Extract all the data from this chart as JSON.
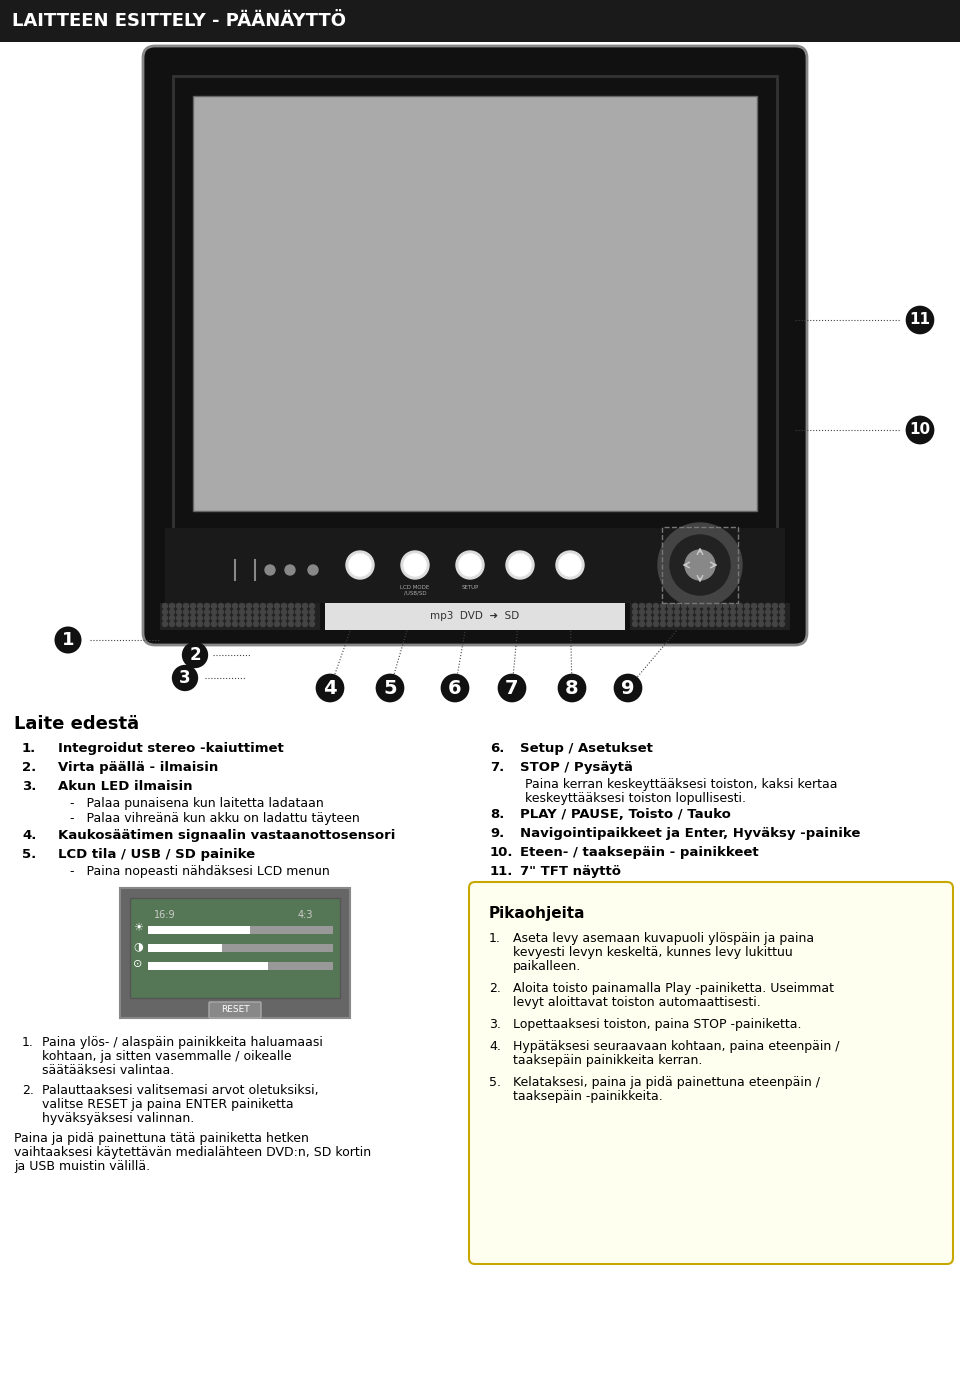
{
  "title": "LAITTEEN ESITTELY - PÄÄNÄYTTÖ",
  "title_bg": "#1a1a1a",
  "title_color": "#ffffff",
  "section_title": "Laite edestä",
  "left_items": [
    {
      "num": "1.",
      "bold": "Integroidut stereo -kaiuttimet",
      "sub": []
    },
    {
      "num": "2.",
      "bold": "Virta päällä - ilmaisin",
      "sub": []
    },
    {
      "num": "3.",
      "bold": "Akun LED ilmaisin",
      "sub": [
        "Palaa punaisena kun laitetta ladataan",
        "Palaa vihreänä kun akku on ladattu täyteen"
      ]
    },
    {
      "num": "4.",
      "bold": "Kaukosäätimen signaalin vastaanottosensori",
      "sub": []
    },
    {
      "num": "5.",
      "bold": "LCD tila / USB / SD painike",
      "sub": [
        "Paina nopeasti nähdäksesi LCD menun"
      ]
    }
  ],
  "right_items": [
    {
      "num": "6.",
      "bold": "Setup / Asetukset",
      "sub": []
    },
    {
      "num": "7.",
      "bold": "STOP / Pysäytä",
      "sub": [
        "Paina kerran keskeyttääksesi toiston, kaksi kertaa keskeyttääksesi toiston lopullisesti."
      ]
    },
    {
      "num": "8.",
      "bold": "PLAY / PAUSE, Toisto / Tauko",
      "sub": []
    },
    {
      "num": "9.",
      "bold": "Navigointipaikkeet ja Enter, Hyväksy -painike",
      "sub": []
    },
    {
      "num": "10.",
      "bold": "Eteen- / taaksepäin - painikkeet",
      "sub": []
    },
    {
      "num": "11.",
      "bold": "7\" TFT näyttö",
      "sub": []
    }
  ],
  "pikaohjeita_title": "Pikaohjeita",
  "pikaohjeita_items": [
    {
      "num": "1.",
      "text": "Aseta levy asemaan kuvapuoli ylöspäin ja paina kevyesti levyn keskeltä, kunnes levy lukittuu paikalleen."
    },
    {
      "num": "2.",
      "text": "Aloita toisto painamalla Play -painiketta. Useimmat levyt aloittavat toiston automaattisesti."
    },
    {
      "num": "3.",
      "text": "Lopettaaksesi toiston, paina STOP -painiketta."
    },
    {
      "num": "4.",
      "text": "Hypätäksesi seuraavaan kohtaan, paina eteenpäin / taaksepäin painikkeita kerran."
    },
    {
      "num": "5.",
      "text": "Kelataksesi, paina ja pidä painettuna eteenpäin / taaksepäin -painikkeita."
    }
  ],
  "lcd_items": [
    {
      "num": "1.",
      "text": "Paina ylös- / alaspäin painikkeita haluamaasi kohtaan, ja sitten vasemmalle / oikealle säätääksesi  valintaa."
    },
    {
      "num": "2.",
      "text": "Palauttaaksesi valitsemasi arvot oletuksiksi, valitse RESET ja paina ENTER painiketta hyväksyäksesi valinnan."
    }
  ],
  "lcd_bottom_text": "Paina ja pidä painettuna tätä painiketta hetken vaihtaaksesi käytettävän medialähteen DVD:n, SD kortin ja USB muistin välillä."
}
